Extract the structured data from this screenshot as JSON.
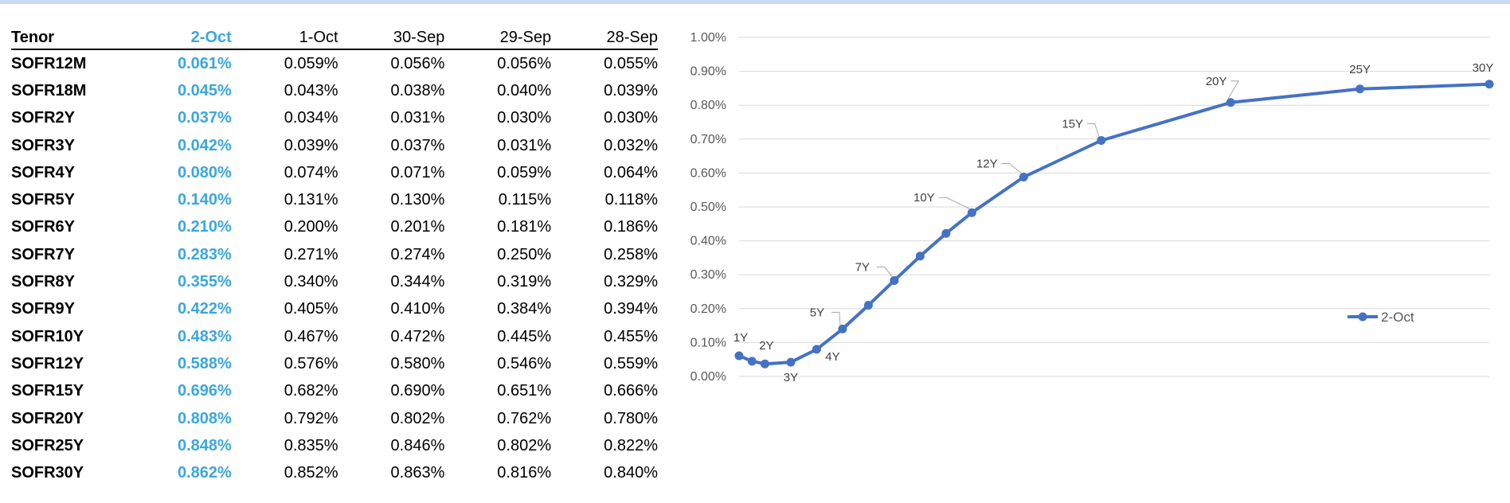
{
  "table": {
    "columns": [
      "Tenor",
      "2-Oct",
      "1-Oct",
      "30-Sep",
      "29-Sep",
      "28-Sep"
    ],
    "rows": [
      [
        "SOFR12M",
        "0.061%",
        "0.059%",
        "0.056%",
        "0.056%",
        "0.055%"
      ],
      [
        "SOFR18M",
        "0.045%",
        "0.043%",
        "0.038%",
        "0.040%",
        "0.039%"
      ],
      [
        "SOFR2Y",
        "0.037%",
        "0.034%",
        "0.031%",
        "0.030%",
        "0.030%"
      ],
      [
        "SOFR3Y",
        "0.042%",
        "0.039%",
        "0.037%",
        "0.031%",
        "0.032%"
      ],
      [
        "SOFR4Y",
        "0.080%",
        "0.074%",
        "0.071%",
        "0.059%",
        "0.064%"
      ],
      [
        "SOFR5Y",
        "0.140%",
        "0.131%",
        "0.130%",
        "0.115%",
        "0.118%"
      ],
      [
        "SOFR6Y",
        "0.210%",
        "0.200%",
        "0.201%",
        "0.181%",
        "0.186%"
      ],
      [
        "SOFR7Y",
        "0.283%",
        "0.271%",
        "0.274%",
        "0.250%",
        "0.258%"
      ],
      [
        "SOFR8Y",
        "0.355%",
        "0.340%",
        "0.344%",
        "0.319%",
        "0.329%"
      ],
      [
        "SOFR9Y",
        "0.422%",
        "0.405%",
        "0.410%",
        "0.384%",
        "0.394%"
      ],
      [
        "SOFR10Y",
        "0.483%",
        "0.467%",
        "0.472%",
        "0.445%",
        "0.455%"
      ],
      [
        "SOFR12Y",
        "0.588%",
        "0.576%",
        "0.580%",
        "0.546%",
        "0.559%"
      ],
      [
        "SOFR15Y",
        "0.696%",
        "0.682%",
        "0.690%",
        "0.651%",
        "0.666%"
      ],
      [
        "SOFR20Y",
        "0.808%",
        "0.792%",
        "0.802%",
        "0.762%",
        "0.780%"
      ],
      [
        "SOFR25Y",
        "0.848%",
        "0.835%",
        "0.846%",
        "0.802%",
        "0.822%"
      ],
      [
        "SOFR30Y",
        "0.862%",
        "0.852%",
        "0.863%",
        "0.816%",
        "0.840%"
      ]
    ],
    "highlight_color": "#3ba7dc"
  },
  "chart_data": {
    "type": "line",
    "title": "",
    "xlabel": "",
    "ylabel": "",
    "ylim": [
      0,
      1.0
    ],
    "yticks": [
      "0.00%",
      "0.10%",
      "0.20%",
      "0.30%",
      "0.40%",
      "0.50%",
      "0.60%",
      "0.70%",
      "0.80%",
      "0.90%",
      "1.00%"
    ],
    "grid": true,
    "legend": {
      "position": "right",
      "entries": [
        "2-Oct"
      ]
    },
    "series": [
      {
        "name": "2-Oct",
        "color": "#4472c4",
        "x": [
          1,
          1.5,
          2,
          3,
          4,
          5,
          6,
          7,
          8,
          9,
          10,
          12,
          15,
          20,
          25,
          30
        ],
        "values": [
          0.061,
          0.045,
          0.037,
          0.042,
          0.08,
          0.14,
          0.21,
          0.283,
          0.355,
          0.422,
          0.483,
          0.588,
          0.696,
          0.808,
          0.848,
          0.862
        ],
        "point_labels": [
          "1Y",
          "",
          "2Y",
          "3Y",
          "4Y",
          "5Y",
          "",
          "7Y",
          "",
          "",
          "10Y",
          "12Y",
          "15Y",
          "20Y",
          "25Y",
          "30Y"
        ]
      }
    ]
  }
}
